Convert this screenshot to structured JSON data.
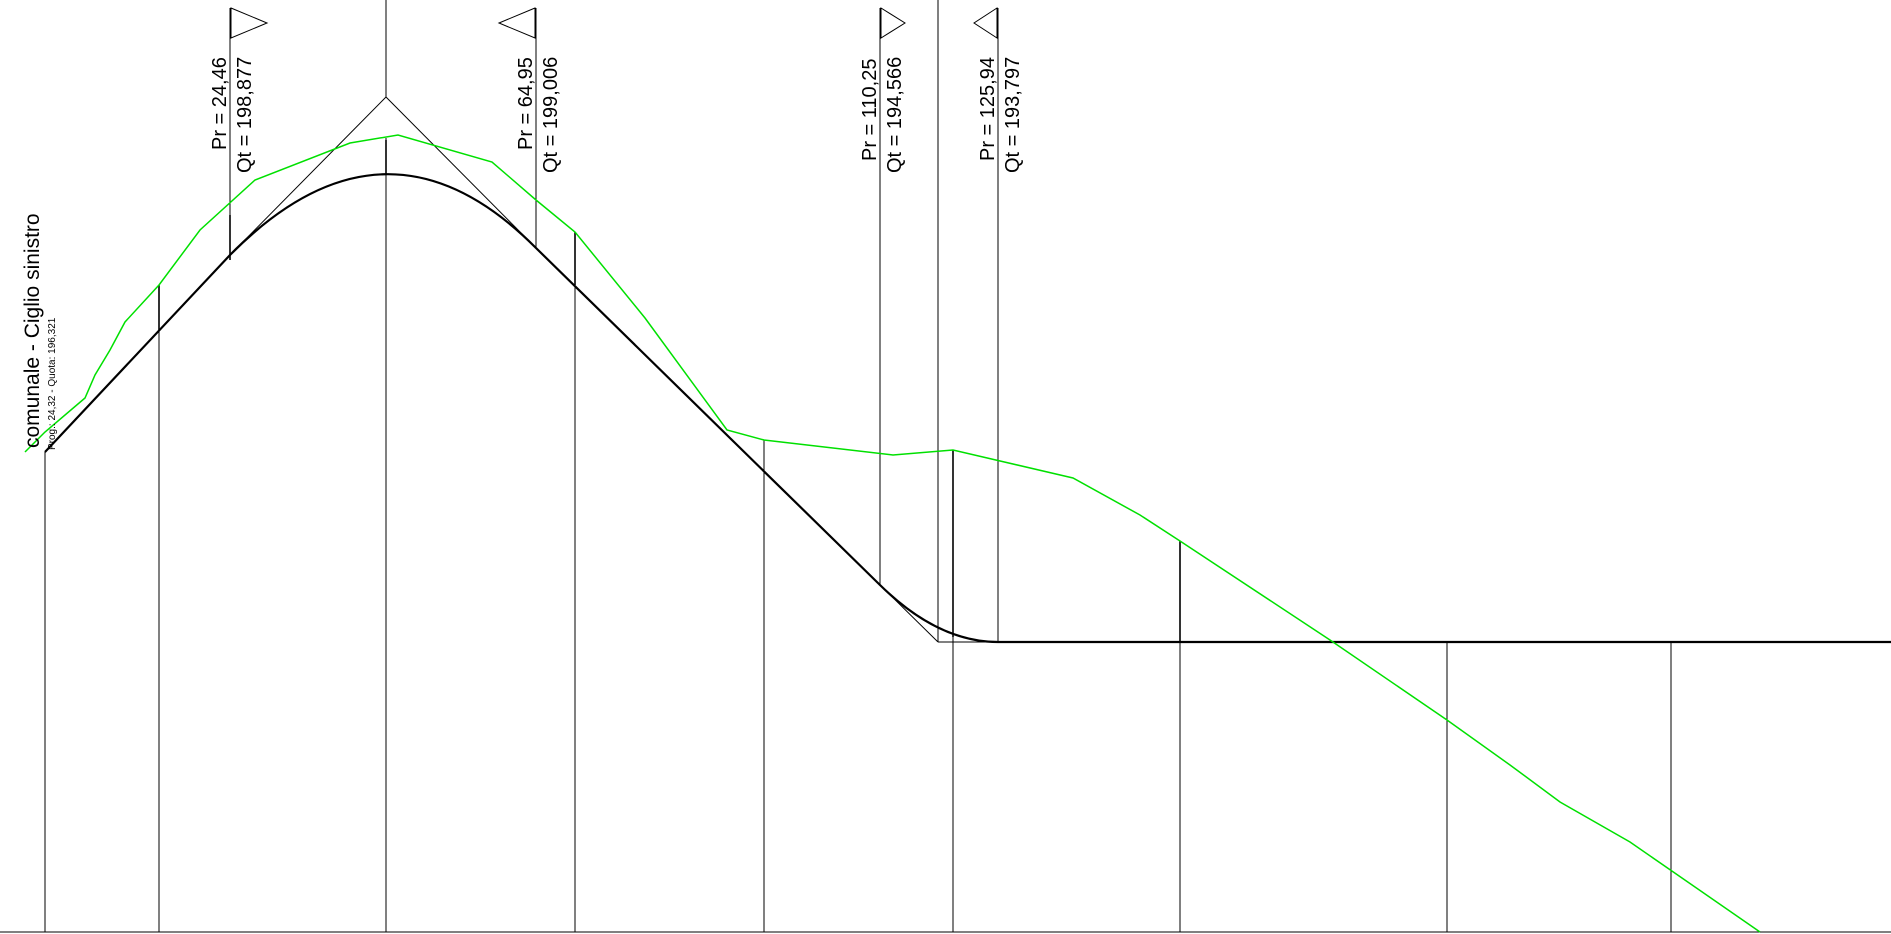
{
  "drawing": {
    "label_main": "comunale - Ciglio sinistro",
    "label_sub": "Prog.: 24,32 - Quota: 196,321",
    "terrain_color": "#00e000",
    "profile_color": "#000000"
  },
  "vertical_curves": [
    {
      "pr": "Pr = 24,46",
      "qt": "Qt = 198,877",
      "flag": "right"
    },
    {
      "pr": "Pr = 64,95",
      "qt": "Qt = 199,006",
      "flag": "left"
    },
    {
      "pr": "Pr = 110,25",
      "qt": "Qt = 194,566",
      "flag": "right"
    },
    {
      "pr": "Pr = 125,94",
      "qt": "Qt = 193,797",
      "flag": "left"
    }
  ]
}
